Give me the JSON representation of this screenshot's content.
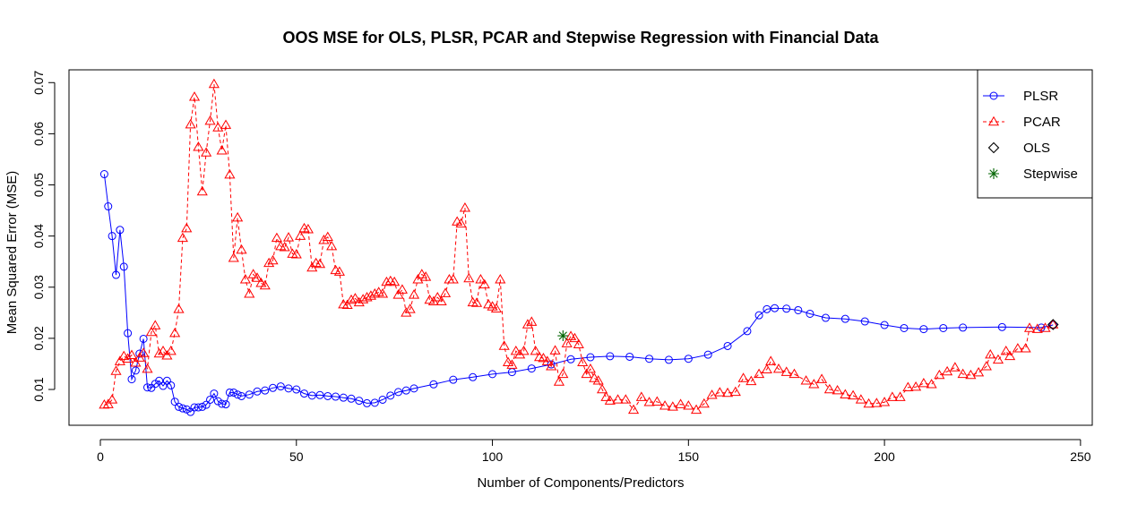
{
  "chart_data": {
    "type": "line",
    "title": "OOS MSE for OLS, PLSR, PCAR and Stepwise Regression with Financial Data",
    "xlabel": "Number of Components/Predictors",
    "ylabel": "Mean Squared Error (MSE)",
    "xlim": [
      -8,
      253
    ],
    "ylim": [
      0.003,
      0.0725
    ],
    "xticks": [
      0,
      50,
      100,
      150,
      200,
      250
    ],
    "yticks": [
      0.01,
      0.02,
      0.03,
      0.04,
      0.05,
      0.06,
      0.07
    ],
    "ytick_labels": [
      "0.01",
      "0.02",
      "0.03",
      "0.04",
      "0.05",
      "0.06",
      "0.07"
    ],
    "grid": false,
    "legend_position": "top-right",
    "series": [
      {
        "name": "PLSR",
        "color": "#0000ff",
        "line": "solid",
        "marker": "circle",
        "points": [
          [
            1,
            0.0521
          ],
          [
            2,
            0.0458
          ],
          [
            3,
            0.04
          ],
          [
            4,
            0.0324
          ],
          [
            5,
            0.0412
          ],
          [
            6,
            0.034
          ],
          [
            7,
            0.021
          ],
          [
            8,
            0.012
          ],
          [
            9,
            0.0137
          ],
          [
            10,
            0.017
          ],
          [
            11,
            0.0199
          ],
          [
            12,
            0.0104
          ],
          [
            13,
            0.0103
          ],
          [
            14,
            0.0111
          ],
          [
            15,
            0.0117
          ],
          [
            16,
            0.0107
          ],
          [
            17,
            0.0117
          ],
          [
            18,
            0.0108
          ],
          [
            19,
            0.0076
          ],
          [
            20,
            0.0066
          ],
          [
            21,
            0.0063
          ],
          [
            22,
            0.0061
          ],
          [
            23,
            0.0056
          ],
          [
            24,
            0.0065
          ],
          [
            25,
            0.0065
          ],
          [
            26,
            0.0066
          ],
          [
            27,
            0.007
          ],
          [
            28,
            0.008
          ],
          [
            29,
            0.0092
          ],
          [
            30,
            0.0077
          ],
          [
            31,
            0.0072
          ],
          [
            32,
            0.0071
          ],
          [
            33,
            0.0094
          ],
          [
            34,
            0.0094
          ],
          [
            35,
            0.009
          ],
          [
            36,
            0.0087
          ],
          [
            38,
            0.009
          ],
          [
            40,
            0.0096
          ],
          [
            42,
            0.0098
          ],
          [
            44,
            0.0103
          ],
          [
            46,
            0.0106
          ],
          [
            48,
            0.0102
          ],
          [
            50,
            0.01
          ],
          [
            52,
            0.0092
          ],
          [
            54,
            0.0088
          ],
          [
            56,
            0.0089
          ],
          [
            58,
            0.0087
          ],
          [
            60,
            0.0086
          ],
          [
            62,
            0.0084
          ],
          [
            64,
            0.0082
          ],
          [
            66,
            0.0078
          ],
          [
            68,
            0.0073
          ],
          [
            70,
            0.0074
          ],
          [
            72,
            0.008
          ],
          [
            74,
            0.0088
          ],
          [
            76,
            0.0095
          ],
          [
            78,
            0.0098
          ],
          [
            80,
            0.0102
          ],
          [
            85,
            0.011
          ],
          [
            90,
            0.0119
          ],
          [
            95,
            0.0124
          ],
          [
            100,
            0.013
          ],
          [
            105,
            0.0134
          ],
          [
            110,
            0.0141
          ],
          [
            115,
            0.0149
          ],
          [
            120,
            0.0159
          ],
          [
            125,
            0.0163
          ],
          [
            130,
            0.0165
          ],
          [
            135,
            0.0164
          ],
          [
            140,
            0.016
          ],
          [
            145,
            0.0158
          ],
          [
            150,
            0.016
          ],
          [
            155,
            0.0168
          ],
          [
            160,
            0.0185
          ],
          [
            165,
            0.0214
          ],
          [
            168,
            0.0245
          ],
          [
            170,
            0.0257
          ],
          [
            172,
            0.0259
          ],
          [
            175,
            0.0258
          ],
          [
            178,
            0.0255
          ],
          [
            181,
            0.0248
          ],
          [
            185,
            0.024
          ],
          [
            190,
            0.0238
          ],
          [
            195,
            0.0233
          ],
          [
            200,
            0.0226
          ],
          [
            205,
            0.022
          ],
          [
            210,
            0.0218
          ],
          [
            215,
            0.022
          ],
          [
            220,
            0.0221
          ],
          [
            230,
            0.0222
          ],
          [
            240,
            0.0221
          ],
          [
            243,
            0.0226
          ]
        ]
      },
      {
        "name": "PCAR",
        "color": "#ff0000",
        "line": "dashed",
        "marker": "triangle",
        "points": [
          [
            1,
            0.007
          ],
          [
            2,
            0.0071
          ],
          [
            3,
            0.008
          ],
          [
            4,
            0.0136
          ],
          [
            5,
            0.0155
          ],
          [
            6,
            0.0165
          ],
          [
            7,
            0.016
          ],
          [
            8,
            0.0167
          ],
          [
            9,
            0.0152
          ],
          [
            10,
            0.0162
          ],
          [
            11,
            0.0171
          ],
          [
            12,
            0.014
          ],
          [
            13,
            0.0212
          ],
          [
            14,
            0.0225
          ],
          [
            15,
            0.017
          ],
          [
            16,
            0.0175
          ],
          [
            17,
            0.0166
          ],
          [
            18,
            0.0175
          ],
          [
            19,
            0.021
          ],
          [
            20,
            0.0257
          ],
          [
            21,
            0.0396
          ],
          [
            22,
            0.0415
          ],
          [
            23,
            0.0618
          ],
          [
            24,
            0.0672
          ],
          [
            25,
            0.0574
          ],
          [
            26,
            0.0487
          ],
          [
            27,
            0.0563
          ],
          [
            28,
            0.0625
          ],
          [
            29,
            0.0697
          ],
          [
            30,
            0.0612
          ],
          [
            31,
            0.0567
          ],
          [
            32,
            0.0617
          ],
          [
            33,
            0.052
          ],
          [
            34,
            0.0357
          ],
          [
            35,
            0.0436
          ],
          [
            36,
            0.0373
          ],
          [
            37,
            0.0315
          ],
          [
            38,
            0.0287
          ],
          [
            39,
            0.0325
          ],
          [
            40,
            0.0318
          ],
          [
            41,
            0.0308
          ],
          [
            42,
            0.0303
          ],
          [
            43,
            0.0347
          ],
          [
            44,
            0.0352
          ],
          [
            45,
            0.0396
          ],
          [
            46,
            0.038
          ],
          [
            47,
            0.0378
          ],
          [
            48,
            0.0397
          ],
          [
            49,
            0.0365
          ],
          [
            50,
            0.0364
          ],
          [
            51,
            0.04
          ],
          [
            52,
            0.0415
          ],
          [
            53,
            0.0413
          ],
          [
            54,
            0.0338
          ],
          [
            55,
            0.0347
          ],
          [
            56,
            0.0345
          ],
          [
            57,
            0.0392
          ],
          [
            58,
            0.0398
          ],
          [
            59,
            0.038
          ],
          [
            60,
            0.0333
          ],
          [
            61,
            0.033
          ],
          [
            62,
            0.0266
          ],
          [
            63,
            0.0265
          ],
          [
            64,
            0.0275
          ],
          [
            65,
            0.0278
          ],
          [
            66,
            0.027
          ],
          [
            67,
            0.0276
          ],
          [
            68,
            0.028
          ],
          [
            69,
            0.0283
          ],
          [
            70,
            0.0287
          ],
          [
            71,
            0.029
          ],
          [
            72,
            0.0287
          ],
          [
            73,
            0.031
          ],
          [
            74,
            0.0312
          ],
          [
            75,
            0.031
          ],
          [
            76,
            0.0285
          ],
          [
            77,
            0.0295
          ],
          [
            78,
            0.025
          ],
          [
            79,
            0.0257
          ],
          [
            80,
            0.0285
          ],
          [
            81,
            0.0315
          ],
          [
            82,
            0.0325
          ],
          [
            83,
            0.032
          ],
          [
            84,
            0.0275
          ],
          [
            85,
            0.0272
          ],
          [
            86,
            0.028
          ],
          [
            87,
            0.0272
          ],
          [
            88,
            0.0288
          ],
          [
            89,
            0.0315
          ],
          [
            90,
            0.0315
          ],
          [
            91,
            0.0428
          ],
          [
            92,
            0.0424
          ],
          [
            93,
            0.0455
          ],
          [
            94,
            0.0317
          ],
          [
            95,
            0.027
          ],
          [
            96,
            0.0269
          ],
          [
            97,
            0.0315
          ],
          [
            98,
            0.0305
          ],
          [
            99,
            0.0266
          ],
          [
            100,
            0.0262
          ],
          [
            101,
            0.0258
          ],
          [
            102,
            0.0315
          ],
          [
            103,
            0.0185
          ],
          [
            104,
            0.0153
          ],
          [
            105,
            0.0148
          ],
          [
            106,
            0.0175
          ],
          [
            107,
            0.0168
          ],
          [
            108,
            0.0175
          ],
          [
            109,
            0.0227
          ],
          [
            110,
            0.0232
          ],
          [
            111,
            0.0175
          ],
          [
            112,
            0.0163
          ],
          [
            113,
            0.0161
          ],
          [
            114,
            0.0155
          ],
          [
            115,
            0.0145
          ],
          [
            116,
            0.0176
          ],
          [
            117,
            0.0115
          ],
          [
            118,
            0.013
          ],
          [
            119,
            0.019
          ],
          [
            120,
            0.0204
          ],
          [
            121,
            0.02
          ],
          [
            122,
            0.0188
          ],
          [
            123,
            0.0153
          ],
          [
            124,
            0.013
          ],
          [
            125,
            0.014
          ],
          [
            126,
            0.0122
          ],
          [
            127,
            0.0117
          ],
          [
            128,
            0.01
          ],
          [
            129,
            0.0085
          ],
          [
            130,
            0.0078
          ],
          [
            132,
            0.008
          ],
          [
            134,
            0.008
          ],
          [
            136,
            0.006
          ],
          [
            138,
            0.0085
          ],
          [
            140,
            0.0075
          ],
          [
            142,
            0.0076
          ],
          [
            144,
            0.0068
          ],
          [
            146,
            0.0066
          ],
          [
            148,
            0.0071
          ],
          [
            150,
            0.0068
          ],
          [
            152,
            0.006
          ],
          [
            154,
            0.0072
          ],
          [
            156,
            0.0089
          ],
          [
            158,
            0.0094
          ],
          [
            160,
            0.0093
          ],
          [
            162,
            0.0095
          ],
          [
            164,
            0.0122
          ],
          [
            166,
            0.0116
          ],
          [
            168,
            0.013
          ],
          [
            170,
            0.0139
          ],
          [
            171,
            0.0155
          ],
          [
            173,
            0.014
          ],
          [
            175,
            0.0134
          ],
          [
            177,
            0.013
          ],
          [
            180,
            0.0117
          ],
          [
            182,
            0.011
          ],
          [
            184,
            0.012
          ],
          [
            186,
            0.01
          ],
          [
            188,
            0.0098
          ],
          [
            190,
            0.009
          ],
          [
            192,
            0.0088
          ],
          [
            194,
            0.008
          ],
          [
            196,
            0.0072
          ],
          [
            198,
            0.0073
          ],
          [
            200,
            0.0075
          ],
          [
            202,
            0.0085
          ],
          [
            204,
            0.0085
          ],
          [
            206,
            0.0104
          ],
          [
            208,
            0.0105
          ],
          [
            210,
            0.0112
          ],
          [
            212,
            0.011
          ],
          [
            214,
            0.0128
          ],
          [
            216,
            0.0135
          ],
          [
            218,
            0.0143
          ],
          [
            220,
            0.013
          ],
          [
            222,
            0.0128
          ],
          [
            224,
            0.0133
          ],
          [
            226,
            0.0145
          ],
          [
            227,
            0.0168
          ],
          [
            229,
            0.0158
          ],
          [
            231,
            0.0175
          ],
          [
            232,
            0.0165
          ],
          [
            234,
            0.018
          ],
          [
            236,
            0.018
          ],
          [
            237,
            0.022
          ],
          [
            239,
            0.0218
          ],
          [
            241,
            0.022
          ],
          [
            243,
            0.0227
          ]
        ]
      },
      {
        "name": "OLS",
        "color": "#000000",
        "line": "none",
        "marker": "diamond",
        "points": [
          [
            243,
            0.0227
          ]
        ]
      },
      {
        "name": "Stepwise",
        "color": "#006400",
        "line": "none",
        "marker": "asterisk",
        "points": [
          [
            118,
            0.0205
          ]
        ]
      }
    ]
  }
}
